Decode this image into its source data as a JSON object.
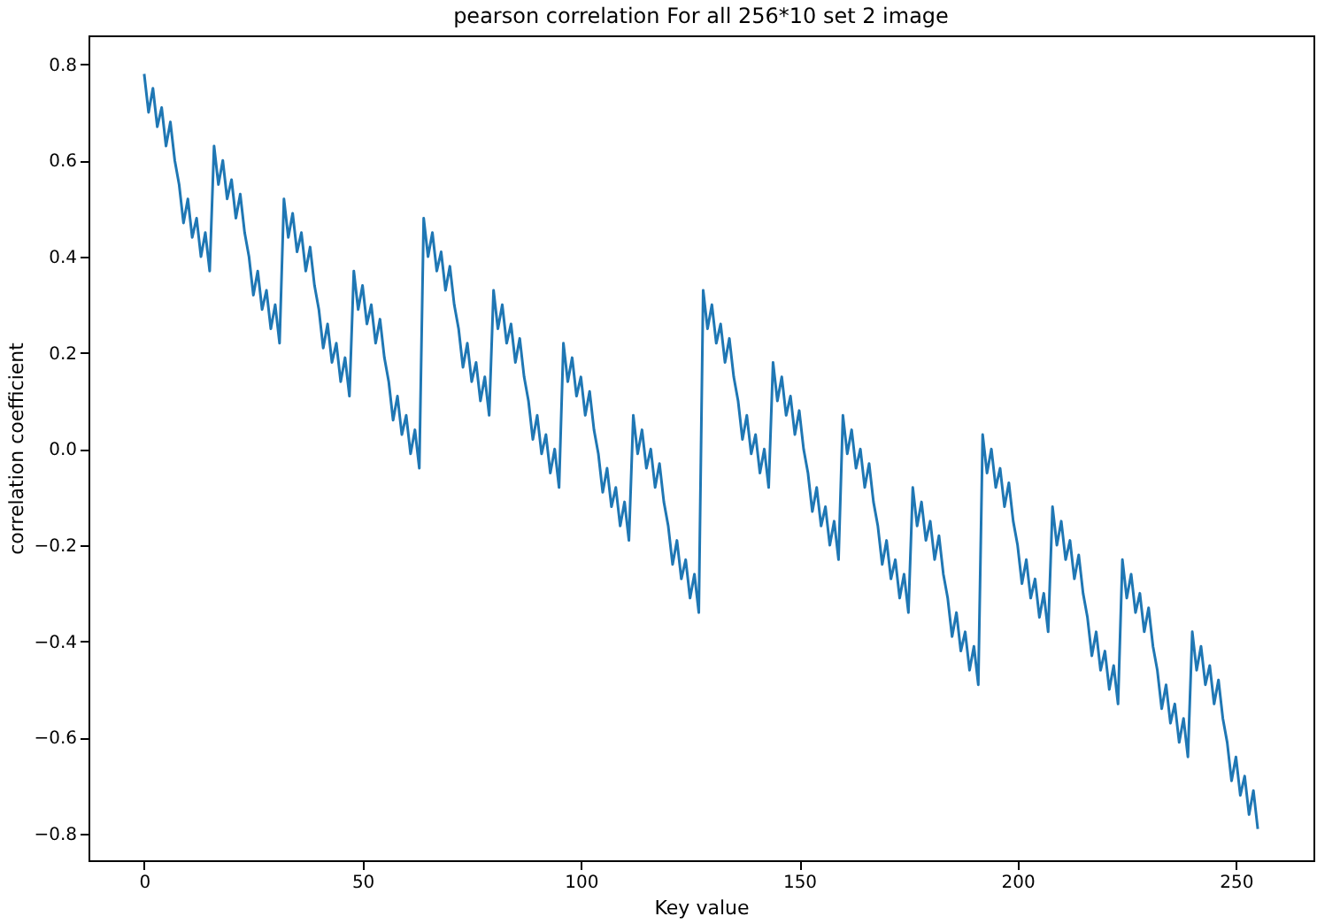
{
  "chart_data": {
    "type": "line",
    "title": "pearson correlation For all  256*10  set 2 image",
    "xlabel": "Key value",
    "ylabel": "correlation coefficient",
    "color": "#1f77b4",
    "xlim": [
      -12.75,
      267.75
    ],
    "xticks": [
      0,
      50,
      100,
      150,
      200,
      250
    ],
    "ylim": [
      -0.855,
      0.86
    ],
    "yticks": [
      {
        "value": -0.8,
        "label": "−0.8"
      },
      {
        "value": -0.6,
        "label": "−0.6"
      },
      {
        "value": -0.4,
        "label": "−0.4"
      },
      {
        "value": -0.2,
        "label": "−0.2"
      },
      {
        "value": 0,
        "label": "0.0"
      },
      0.2,
      0.4,
      0.6,
      0.8
    ],
    "grid": false,
    "x": [
      0,
      1,
      2,
      3,
      4,
      5,
      6,
      7,
      8,
      9,
      10,
      11,
      12,
      13,
      14,
      15,
      16,
      17,
      18,
      19,
      20,
      21,
      22,
      23,
      24,
      25,
      26,
      27,
      28,
      29,
      30,
      31,
      32,
      33,
      34,
      35,
      36,
      37,
      38,
      39,
      40,
      41,
      42,
      43,
      44,
      45,
      46,
      47,
      48,
      49,
      50,
      51,
      52,
      53,
      54,
      55,
      56,
      57,
      58,
      59,
      60,
      61,
      62,
      63,
      64,
      65,
      66,
      67,
      68,
      69,
      70,
      71,
      72,
      73,
      74,
      75,
      76,
      77,
      78,
      79,
      80,
      81,
      82,
      83,
      84,
      85,
      86,
      87,
      88,
      89,
      90,
      91,
      92,
      93,
      94,
      95,
      96,
      97,
      98,
      99,
      100,
      101,
      102,
      103,
      104,
      105,
      106,
      107,
      108,
      109,
      110,
      111,
      112,
      113,
      114,
      115,
      116,
      117,
      118,
      119,
      120,
      121,
      122,
      123,
      124,
      125,
      126,
      127,
      128,
      129,
      130,
      131,
      132,
      133,
      134,
      135,
      136,
      137,
      138,
      139,
      140,
      141,
      142,
      143,
      144,
      145,
      146,
      147,
      148,
      149,
      150,
      151,
      152,
      153,
      154,
      155,
      156,
      157,
      158,
      159,
      160,
      161,
      162,
      163,
      164,
      165,
      166,
      167,
      168,
      169,
      170,
      171,
      172,
      173,
      174,
      175,
      176,
      177,
      178,
      179,
      180,
      181,
      182,
      183,
      184,
      185,
      186,
      187,
      188,
      189,
      190,
      191,
      192,
      193,
      194,
      195,
      196,
      197,
      198,
      199,
      200,
      201,
      202,
      203,
      204,
      205,
      206,
      207,
      208,
      209,
      210,
      211,
      212,
      213,
      214,
      215,
      216,
      217,
      218,
      219,
      220,
      221,
      222,
      223,
      224,
      225,
      226,
      227,
      228,
      229,
      230,
      231,
      232,
      233,
      234,
      235,
      236,
      237,
      238,
      239,
      240,
      241,
      242,
      243,
      244,
      245,
      246,
      247,
      248,
      249,
      250,
      251,
      252,
      253,
      254,
      255
    ],
    "values": [
      0.78,
      0.7,
      0.75,
      0.67,
      0.71,
      0.63,
      0.68,
      0.6,
      0.55,
      0.47,
      0.52,
      0.44,
      0.48,
      0.4,
      0.45,
      0.37,
      0.63,
      0.55,
      0.6,
      0.52,
      0.56,
      0.48,
      0.53,
      0.45,
      0.4,
      0.32,
      0.37,
      0.29,
      0.33,
      0.25,
      0.3,
      0.22,
      0.52,
      0.44,
      0.49,
      0.41,
      0.45,
      0.37,
      0.42,
      0.34,
      0.29,
      0.21,
      0.26,
      0.18,
      0.22,
      0.14,
      0.19,
      0.11,
      0.37,
      0.29,
      0.34,
      0.26,
      0.3,
      0.22,
      0.27,
      0.19,
      0.14,
      0.06,
      0.11,
      0.03,
      0.07,
      -0.01,
      0.04,
      -0.04,
      0.48,
      0.4,
      0.45,
      0.37,
      0.41,
      0.33,
      0.38,
      0.3,
      0.25,
      0.17,
      0.22,
      0.14,
      0.18,
      0.1,
      0.15,
      0.07,
      0.33,
      0.25,
      0.3,
      0.22,
      0.26,
      0.18,
      0.23,
      0.15,
      0.1,
      0.02,
      0.07,
      -0.01,
      0.03,
      -0.05,
      0,
      -0.08,
      0.22,
      0.14,
      0.19,
      0.11,
      0.15,
      0.07,
      0.12,
      0.04,
      -0.01,
      -0.09,
      -0.04,
      -0.12,
      -0.08,
      -0.16,
      -0.11,
      -0.19,
      0.07,
      -0.01,
      0.04,
      -0.04,
      0,
      -0.08,
      -0.03,
      -0.11,
      -0.16,
      -0.24,
      -0.19,
      -0.27,
      -0.23,
      -0.31,
      -0.26,
      -0.34,
      0.33,
      0.25,
      0.3,
      0.22,
      0.26,
      0.18,
      0.23,
      0.15,
      0.1,
      0.02,
      0.07,
      -0.01,
      0.03,
      -0.05,
      0,
      -0.08,
      0.18,
      0.1,
      0.15,
      0.07,
      0.11,
      0.03,
      0.08,
      0,
      -0.05,
      -0.13,
      -0.08,
      -0.16,
      -0.12,
      -0.2,
      -0.15,
      -0.23,
      0.07,
      -0.01,
      0.04,
      -0.04,
      0,
      -0.08,
      -0.03,
      -0.11,
      -0.16,
      -0.24,
      -0.19,
      -0.27,
      -0.23,
      -0.31,
      -0.26,
      -0.34,
      -0.08,
      -0.16,
      -0.11,
      -0.19,
      -0.15,
      -0.23,
      -0.18,
      -0.26,
      -0.31,
      -0.39,
      -0.34,
      -0.42,
      -0.38,
      -0.46,
      -0.41,
      -0.49,
      0.03,
      -0.05,
      0,
      -0.08,
      -0.04,
      -0.12,
      -0.07,
      -0.15,
      -0.2,
      -0.28,
      -0.23,
      -0.31,
      -0.27,
      -0.35,
      -0.3,
      -0.38,
      -0.12,
      -0.2,
      -0.15,
      -0.23,
      -0.19,
      -0.27,
      -0.22,
      -0.3,
      -0.35,
      -0.43,
      -0.38,
      -0.46,
      -0.42,
      -0.5,
      -0.45,
      -0.53,
      -0.23,
      -0.31,
      -0.26,
      -0.34,
      -0.3,
      -0.38,
      -0.33,
      -0.41,
      -0.46,
      -0.54,
      -0.49,
      -0.57,
      -0.53,
      -0.61,
      -0.56,
      -0.64,
      -0.38,
      -0.46,
      -0.41,
      -0.49,
      -0.45,
      -0.53,
      -0.48,
      -0.56,
      -0.61,
      -0.69,
      -0.64,
      -0.72,
      -0.68,
      -0.76,
      -0.71,
      -0.79
    ]
  }
}
